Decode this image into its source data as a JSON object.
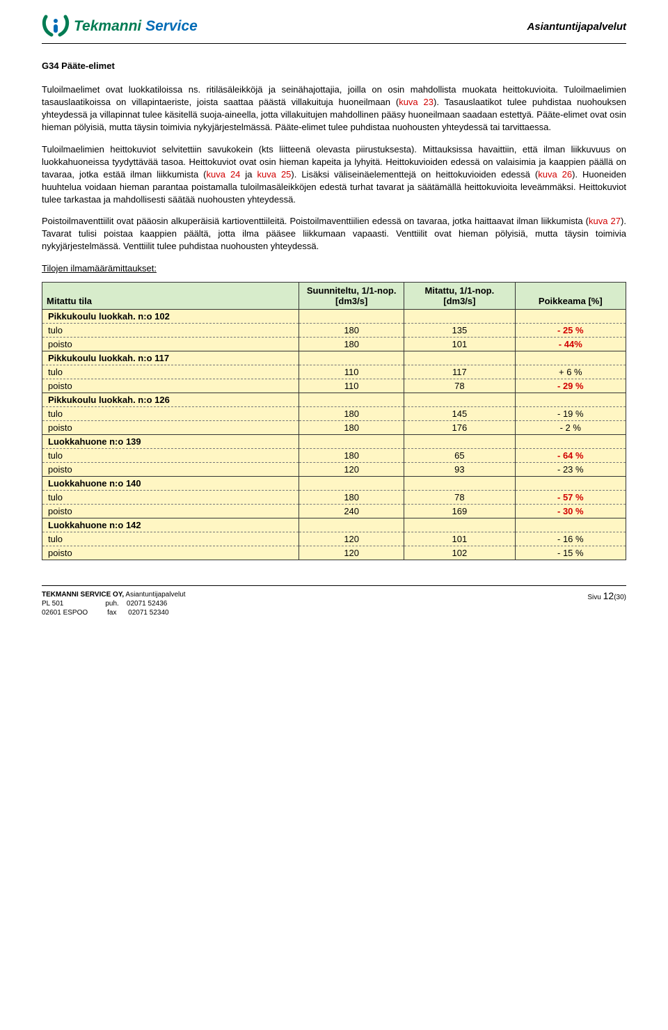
{
  "header": {
    "logo_main": "Tekmanni",
    "logo_sub": "Service",
    "right": "Asiantuntijapalvelut"
  },
  "section_title": "G34 Pääte-elimet",
  "paragraphs": {
    "p1_a": "Tuloilmaelimet ovat luokkatiloissa ns. ritiläsäleikköjä ja seinähajottajia, joilla on osin mahdollista muokata heittokuvioita. Tuloilmaelimien tasauslaatikoissa on villapintaeriste, joista saattaa päästä villakuituja huoneilmaan (",
    "p1_k1": "kuva 23",
    "p1_b": "). Tasauslaatikot tulee puhdistaa nuohouksen yhteydessä ja villapinnat tulee käsitellä suoja-aineella, jotta villakuitujen mahdollinen pääsy huoneilmaan saadaan estettyä. Pääte-elimet ovat osin hieman pölyisiä, mutta täysin toimivia nykyjärjestelmässä. Pääte-elimet tulee puhdistaa nuohousten yhteydessä tai tarvittaessa.",
    "p2_a": "Tuloilmaelimien heittokuviot selvitettiin savukokein (kts liitteenä olevasta piirustuksesta). Mittauksissa havaittiin, että ilman liikkuvuus on luokkahuoneissa tyydyttävää tasoa. Heittokuviot ovat osin hieman kapeita ja lyhyitä. Heittokuvioiden edessä on valaisimia ja kaappien päällä on tavaraa, jotka estää ilman liikkumista (",
    "p2_k1": "kuva 24",
    "p2_b": " ja ",
    "p2_k2": "kuva 25",
    "p2_c": "). Lisäksi väliseinäelementtejä on heittokuvioiden edessä (",
    "p2_k3": "kuva 26",
    "p2_d": "). Huoneiden huuhtelua voidaan hieman parantaa poistamalla tuloilmasäleikköjen edestä turhat tavarat ja säätämällä heittokuvioita leveämmäksi. Heittokuviot tulee tarkastaa ja mahdollisesti säätää nuohousten yhteydessä.",
    "p3_a": "Poistoilmaventtiilit ovat pääosin alkuperäisiä kartioventtiileitä. Poistoilmaventtiilien edessä on tavaraa, jotka haittaavat ilman liikkumista (",
    "p3_k1": "kuva 27",
    "p3_b": "). Tavarat tulisi poistaa kaappien päältä, jotta ilma pääsee liikkumaan vapaasti. Venttiilit ovat hieman pölyisiä, mutta täysin toimivia nykyjärjestelmässä. Venttiilit tulee puhdistaa nuohousten yhteydessä."
  },
  "table_title": "Tilojen ilmamäärämittaukset:",
  "table": {
    "columns": [
      "Mitattu tila",
      "Suunniteltu, 1/1-nop. [dm3/s]",
      "Mitattu, 1/1-nop. [dm3/s]",
      "Poikkeama [%]"
    ],
    "groups": [
      {
        "name": "Pikkukoulu luokkah. n:o 102",
        "rows": [
          {
            "label": "tulo",
            "plan": "180",
            "meas": "135",
            "dev": "- 25 %",
            "red": true
          },
          {
            "label": "poisto",
            "plan": "180",
            "meas": "101",
            "dev": "- 44%",
            "red": true
          }
        ]
      },
      {
        "name": "Pikkukoulu luokkah. n:o 117",
        "rows": [
          {
            "label": "tulo",
            "plan": "110",
            "meas": "117",
            "dev": "+ 6 %",
            "red": false
          },
          {
            "label": "poisto",
            "plan": "110",
            "meas": "78",
            "dev": "- 29 %",
            "red": true
          }
        ]
      },
      {
        "name": "Pikkukoulu luokkah. n:o 126",
        "rows": [
          {
            "label": "tulo",
            "plan": "180",
            "meas": "145",
            "dev": "- 19 %",
            "red": false
          },
          {
            "label": "poisto",
            "plan": "180",
            "meas": "176",
            "dev": "- 2 %",
            "red": false
          }
        ]
      },
      {
        "name": "Luokkahuone n:o 139",
        "rows": [
          {
            "label": "tulo",
            "plan": "180",
            "meas": "65",
            "dev": "- 64 %",
            "red": true
          },
          {
            "label": "poisto",
            "plan": "120",
            "meas": "93",
            "dev": "- 23 %",
            "red": false
          }
        ]
      },
      {
        "name": "Luokkahuone n:o 140",
        "rows": [
          {
            "label": "tulo",
            "plan": "180",
            "meas": "78",
            "dev": "- 57 %",
            "red": true
          },
          {
            "label": "poisto",
            "plan": "240",
            "meas": "169",
            "dev": "- 30 %",
            "red": true
          }
        ]
      },
      {
        "name": "Luokkahuone n:o 142",
        "rows": [
          {
            "label": "tulo",
            "plan": "120",
            "meas": "101",
            "dev": "- 16 %",
            "red": false
          },
          {
            "label": "poisto",
            "plan": "120",
            "meas": "102",
            "dev": "- 15 %",
            "red": false
          }
        ]
      }
    ]
  },
  "footer": {
    "company": "TEKMANNI SERVICE OY,",
    "company_suffix": " Asiantuntijapalvelut",
    "addr1": "PL 501",
    "addr2": "02601 ESPOO",
    "phone_lbl": "puh.",
    "fax_lbl": "fax",
    "phone": "02071 52436",
    "fax": "02071 52340",
    "page_lbl": "Sivu ",
    "page": "12",
    "page_total": "(30)"
  },
  "colors": {
    "green": "#007b52",
    "blue": "#006bb5",
    "red": "#d10000",
    "th_bg": "#d7eccb",
    "td_bg": "#fff6c3"
  }
}
